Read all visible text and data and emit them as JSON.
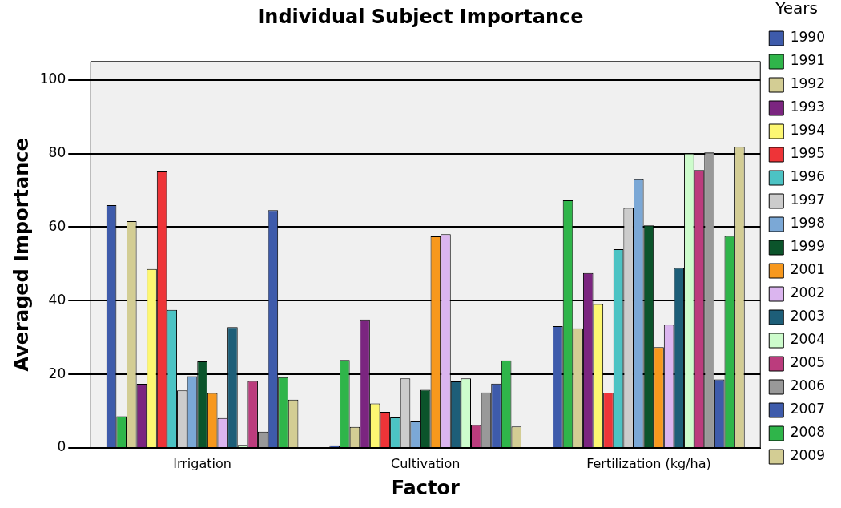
{
  "chart_data": {
    "type": "bar",
    "title": "Individual Subject Importance",
    "xlabel": "Factor",
    "ylabel": "Averaged Importance",
    "legend_title": "Years",
    "legend": "right",
    "grid": "y",
    "categories": [
      "Irrigation",
      "Cultivation",
      "Fertilization (kg/ha)"
    ],
    "ylim": [
      0,
      105
    ],
    "yticks": [
      0,
      20,
      40,
      60,
      80,
      100
    ],
    "series": [
      {
        "name": "1990",
        "color": "#3e5bab",
        "values": [
          66.0,
          0.7,
          33.1
        ]
      },
      {
        "name": "1991",
        "color": "#2fb54a",
        "values": [
          8.6,
          23.9,
          67.3
        ]
      },
      {
        "name": "1992",
        "color": "#d3cd94",
        "values": [
          61.6,
          5.7,
          32.5
        ]
      },
      {
        "name": "1993",
        "color": "#7b2580",
        "values": [
          17.4,
          34.9,
          47.5
        ]
      },
      {
        "name": "1994",
        "color": "#fdf772",
        "values": [
          48.6,
          12.1,
          39.1
        ]
      },
      {
        "name": "1995",
        "color": "#ee3438",
        "values": [
          75.1,
          9.8,
          15.0
        ]
      },
      {
        "name": "1996",
        "color": "#4cc3c4",
        "values": [
          37.5,
          8.3,
          54.0
        ]
      },
      {
        "name": "1997",
        "color": "#cccccc",
        "values": [
          15.6,
          18.9,
          65.2
        ]
      },
      {
        "name": "1998",
        "color": "#7ba8d6",
        "values": [
          19.5,
          7.2,
          73.0
        ]
      },
      {
        "name": "1999",
        "color": "#0b542b",
        "values": [
          23.5,
          15.8,
          60.5
        ]
      },
      {
        "name": "2001",
        "color": "#f7981d",
        "values": [
          14.9,
          57.5,
          27.4
        ]
      },
      {
        "name": "2002",
        "color": "#dbb5ef",
        "values": [
          8.1,
          58.1,
          33.5
        ]
      },
      {
        "name": "2003",
        "color": "#1d5e78",
        "values": [
          32.8,
          18.1,
          48.9
        ]
      },
      {
        "name": "2004",
        "color": "#cdfccc",
        "values": [
          0.8,
          18.9,
          80.0
        ]
      },
      {
        "name": "2005",
        "color": "#bb3c7d",
        "values": [
          18.2,
          6.2,
          75.5
        ]
      },
      {
        "name": "2006",
        "color": "#999999",
        "values": [
          4.4,
          15.1,
          80.3
        ]
      },
      {
        "name": "2007",
        "color": "#3e5bab",
        "values": [
          64.6,
          17.5,
          18.6
        ]
      },
      {
        "name": "2008",
        "color": "#2fb54a",
        "values": [
          19.2,
          23.8,
          57.6
        ]
      },
      {
        "name": "2009",
        "color": "#d3cd94",
        "values": [
          13.1,
          5.8,
          81.8
        ]
      }
    ]
  }
}
